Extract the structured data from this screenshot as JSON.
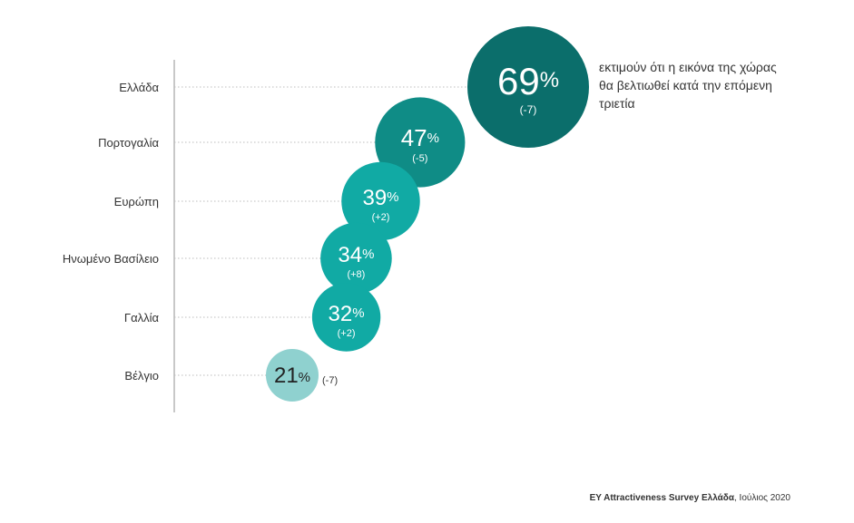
{
  "chart_data": {
    "type": "bubble",
    "categories": [
      "Ελλάδα",
      "Πορτογαλία",
      "Ευρώπη",
      "Ηνωμένο Βασίλειο",
      "Γαλλία",
      "Βέλγιο"
    ],
    "values": [
      69,
      47,
      39,
      34,
      32,
      21
    ],
    "value_suffix": "%",
    "changes": [
      "(-7)",
      "(-5)",
      "(+2)",
      "(+8)",
      "(+2)",
      "(-7)"
    ],
    "annotation": "εκτιμούν ότι η εικόνα της χώρας θα βελτιωθεί κατά την επόμενη τριετία",
    "colors": [
      "#0b6e6b",
      "#0f8c86",
      "#11aaa4",
      "#11aaa4",
      "#11aaa4",
      "#8fd1cf"
    ],
    "grid": "dotted horizontal"
  },
  "source": {
    "title": "EY Attractiveness Survey Ελλάδα",
    "date": ", Ιούλιος 2020"
  }
}
